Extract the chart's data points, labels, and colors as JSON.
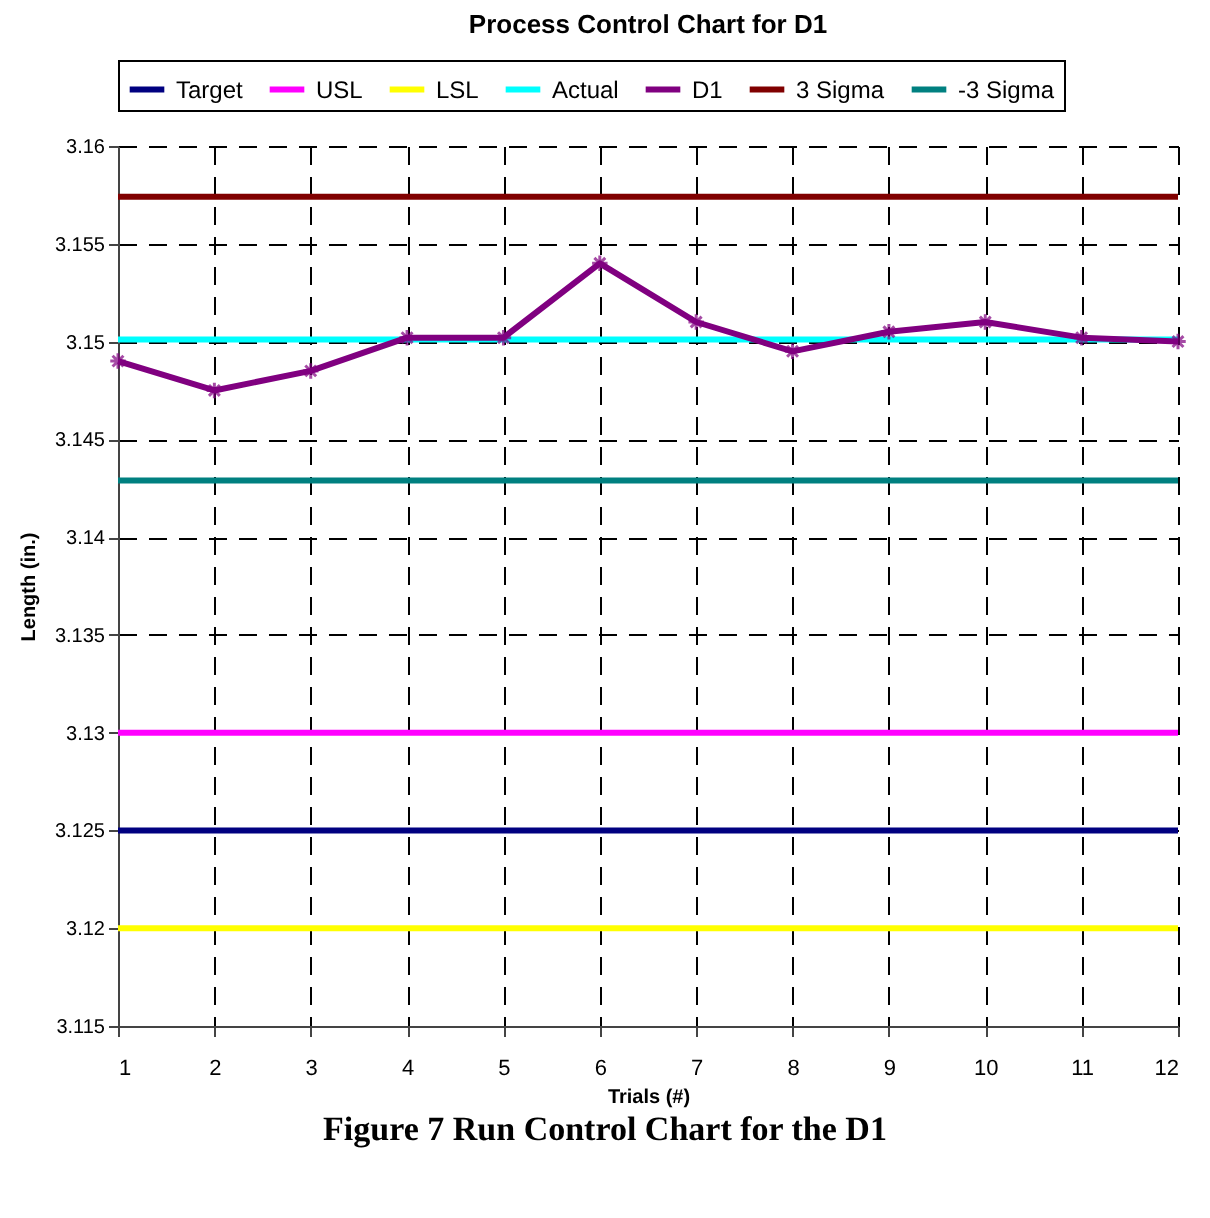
{
  "chart_data": {
    "type": "line",
    "title": "Process Control Chart for D1",
    "xlabel": "Trials (#)",
    "ylabel": "Length (in.)",
    "annotations": [
      "Figure 7 Run Control Chart for the D1"
    ],
    "series": [
      {
        "name": "Target",
        "color": "#000080",
        "x": [
          1,
          12
        ],
        "values": [
          3.125,
          3.125
        ]
      },
      {
        "name": "USL",
        "color": "#ff00ff",
        "x": [
          1,
          12
        ],
        "values": [
          3.13,
          3.13
        ]
      },
      {
        "name": "LSL",
        "color": "#ffff00",
        "x": [
          1,
          12
        ],
        "values": [
          3.12,
          3.12
        ]
      },
      {
        "name": "Actual",
        "color": "#00ffff",
        "x": [
          1,
          12
        ],
        "values": [
          3.1501,
          3.1501
        ]
      },
      {
        "name": "D1",
        "color": "#800080",
        "marker": "cross",
        "x": [
          1,
          2,
          3,
          4,
          5,
          6,
          7,
          8,
          9,
          10,
          11,
          12
        ],
        "values": [
          3.149,
          3.1475,
          3.1485,
          3.1502,
          3.1502,
          3.154,
          3.151,
          3.1495,
          3.1505,
          3.151,
          3.1502,
          3.15
        ]
      },
      {
        "name": "3 Sigma",
        "color": "#800000",
        "x": [
          1,
          12
        ],
        "values": [
          3.1574,
          3.1574
        ]
      },
      {
        "name": "-3 Sigma",
        "color": "#008080",
        "x": [
          1,
          12
        ],
        "values": [
          3.1429,
          3.1429
        ]
      }
    ],
    "xlim": [
      1,
      12
    ],
    "xticks": [
      1,
      2,
      3,
      4,
      5,
      6,
      7,
      8,
      9,
      10,
      11,
      12
    ],
    "ylim": [
      3.115,
      3.16
    ],
    "yticks": [
      3.115,
      3.12,
      3.125,
      3.13,
      3.135,
      3.14,
      3.145,
      3.15,
      3.155,
      3.16
    ],
    "grid": true,
    "legend": "top",
    "line_style": "solid"
  }
}
